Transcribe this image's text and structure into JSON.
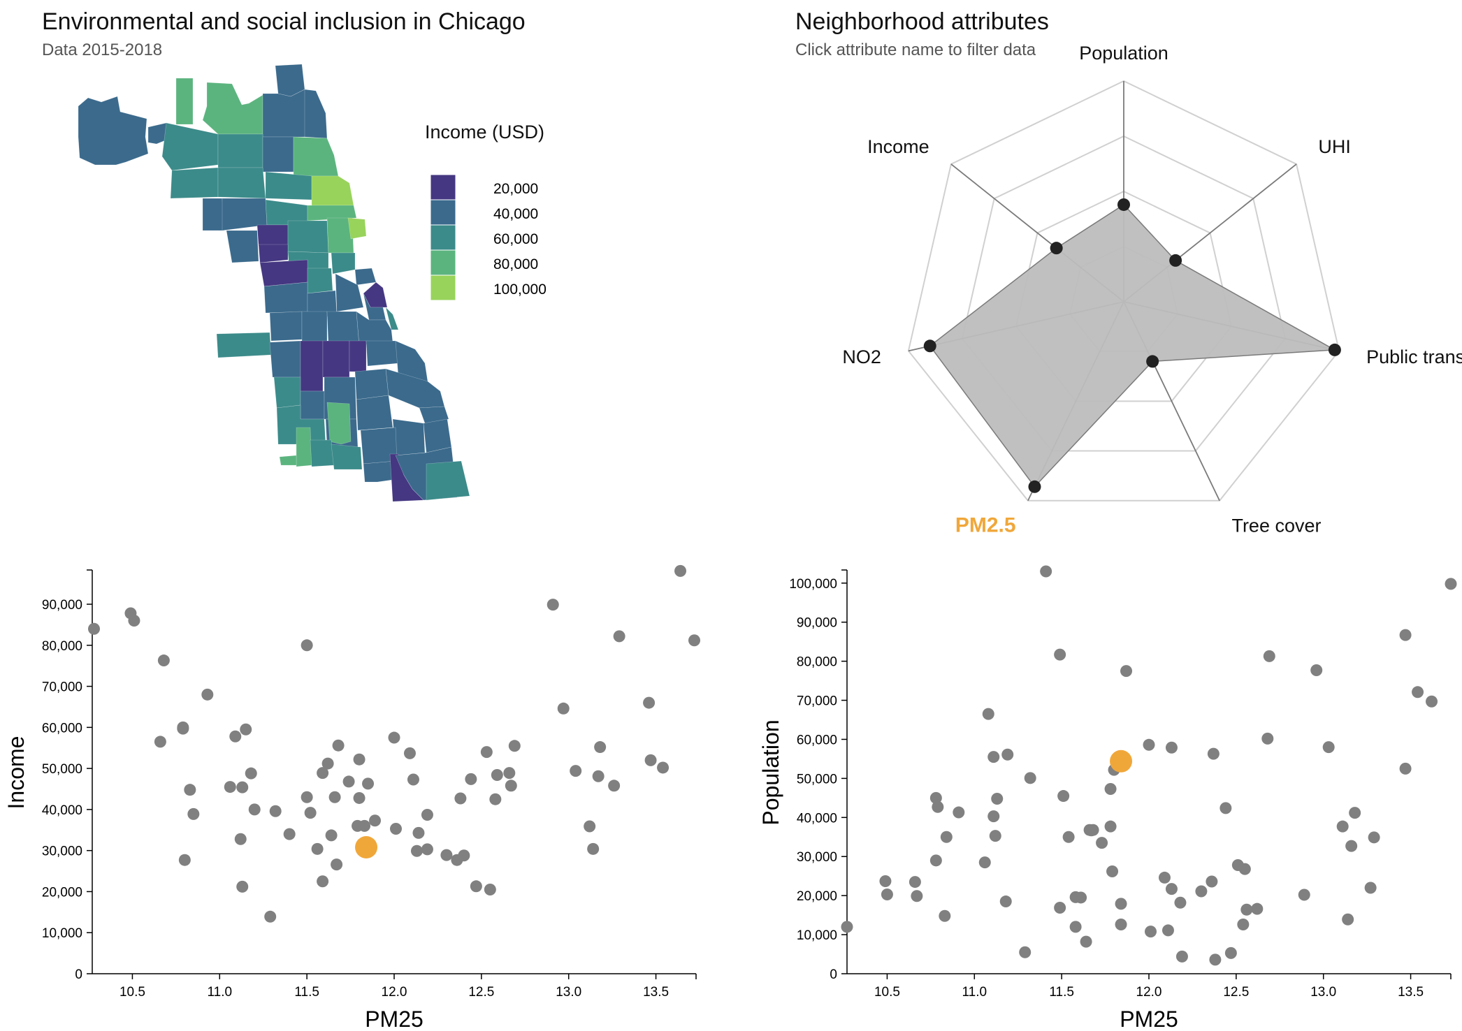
{
  "map_panel": {
    "title": "Environmental and social inclusion in Chicago",
    "subtitle": "Data 2015-2018",
    "legend_title": "Income (USD)",
    "legend": [
      {
        "label": "20,000",
        "color": "#453781"
      },
      {
        "label": "40,000",
        "color": "#3b6a8c"
      },
      {
        "label": "60,000",
        "color": "#3b8b8a"
      },
      {
        "label": "80,000",
        "color": "#5bb47e"
      },
      {
        "label": "100,000",
        "color": "#98d35b"
      }
    ]
  },
  "radar_panel": {
    "title": "Neighborhood attributes",
    "subtitle": "Click attribute name to filter data",
    "selected_axis": "PM2.5",
    "highlight_color": "#f0a73a"
  },
  "chart_data": [
    {
      "type": "radar",
      "axes": [
        "Population",
        "UHI",
        "Public transit",
        "Tree cover",
        "PM2.5",
        "NO2",
        "Income"
      ],
      "values": [
        0.44,
        0.3,
        0.98,
        0.3,
        0.93,
        0.9,
        0.39
      ],
      "rings": 4,
      "fill_color": "#bdbdbd"
    },
    {
      "type": "scatter",
      "xlabel": "PM25",
      "ylabel": "Income",
      "xlim": [
        10.27,
        13.73
      ],
      "ylim": [
        0,
        98000
      ],
      "xticks": [
        "10.5",
        "11.0",
        "11.5",
        "12.0",
        "12.5",
        "13.0",
        "13.5"
      ],
      "yticks": [
        "0",
        "10,000",
        "20,000",
        "30,000",
        "40,000",
        "50,000",
        "60,000",
        "70,000",
        "80,000",
        "90,000"
      ],
      "point_color": "#808080",
      "highlight_color": "#f0a73a",
      "highlight": {
        "x": 11.84,
        "y": 30800
      },
      "points": [
        [
          10.28,
          84000
        ],
        [
          10.49,
          87800
        ],
        [
          10.51,
          86000
        ],
        [
          10.66,
          56500
        ],
        [
          10.68,
          76300
        ],
        [
          10.79,
          59700
        ],
        [
          10.79,
          60000
        ],
        [
          10.8,
          27700
        ],
        [
          10.83,
          44800
        ],
        [
          10.85,
          38900
        ],
        [
          10.93,
          68000
        ],
        [
          11.06,
          45500
        ],
        [
          11.09,
          57800
        ],
        [
          11.12,
          32800
        ],
        [
          11.13,
          21200
        ],
        [
          11.13,
          45400
        ],
        [
          11.15,
          59500
        ],
        [
          11.18,
          48800
        ],
        [
          11.2,
          40000
        ],
        [
          11.29,
          13900
        ],
        [
          11.32,
          39600
        ],
        [
          11.4,
          34000
        ],
        [
          11.5,
          80000
        ],
        [
          11.5,
          43000
        ],
        [
          11.52,
          39200
        ],
        [
          11.56,
          30400
        ],
        [
          11.59,
          22500
        ],
        [
          11.59,
          48900
        ],
        [
          11.62,
          51200
        ],
        [
          11.64,
          33700
        ],
        [
          11.66,
          43000
        ],
        [
          11.67,
          26600
        ],
        [
          11.68,
          55600
        ],
        [
          11.74,
          46800
        ],
        [
          11.79,
          36000
        ],
        [
          11.8,
          52200
        ],
        [
          11.8,
          42800
        ],
        [
          11.83,
          36000
        ],
        [
          11.85,
          46300
        ],
        [
          11.89,
          37300
        ],
        [
          12.0,
          57500
        ],
        [
          12.01,
          35300
        ],
        [
          12.09,
          53700
        ],
        [
          12.11,
          47300
        ],
        [
          12.13,
          29900
        ],
        [
          12.14,
          34300
        ],
        [
          12.19,
          38700
        ],
        [
          12.19,
          30300
        ],
        [
          12.3,
          28900
        ],
        [
          12.36,
          27700
        ],
        [
          12.38,
          42700
        ],
        [
          12.4,
          28800
        ],
        [
          12.44,
          47400
        ],
        [
          12.47,
          21300
        ],
        [
          12.53,
          54000
        ],
        [
          12.55,
          20500
        ],
        [
          12.58,
          42500
        ],
        [
          12.59,
          48400
        ],
        [
          12.66,
          48900
        ],
        [
          12.67,
          45800
        ],
        [
          12.69,
          55500
        ],
        [
          12.91,
          89900
        ],
        [
          12.97,
          64600
        ],
        [
          13.04,
          49400
        ],
        [
          13.12,
          35900
        ],
        [
          13.14,
          30400
        ],
        [
          13.17,
          48100
        ],
        [
          13.18,
          55200
        ],
        [
          13.26,
          45800
        ],
        [
          13.29,
          82200
        ],
        [
          13.46,
          66000
        ],
        [
          13.47,
          52000
        ],
        [
          13.54,
          50200
        ],
        [
          13.64,
          98100
        ],
        [
          13.72,
          81200
        ]
      ]
    },
    {
      "type": "scatter",
      "xlabel": "PM25",
      "ylabel": "Population",
      "xlim": [
        10.27,
        13.73
      ],
      "ylim": [
        0,
        103000
      ],
      "xticks": [
        "10.5",
        "11.0",
        "11.5",
        "12.0",
        "12.5",
        "13.0",
        "13.5"
      ],
      "yticks": [
        "0",
        "10,000",
        "20,000",
        "30,000",
        "40,000",
        "50,000",
        "60,000",
        "70,000",
        "80,000",
        "90,000",
        "100,000"
      ],
      "point_color": "#808080",
      "highlight_color": "#f0a73a",
      "highlight": {
        "x": 11.84,
        "y": 54400
      },
      "points": [
        [
          10.27,
          12000
        ],
        [
          10.49,
          23700
        ],
        [
          10.5,
          20300
        ],
        [
          10.66,
          23500
        ],
        [
          10.67,
          19900
        ],
        [
          10.78,
          45000
        ],
        [
          10.78,
          29000
        ],
        [
          10.79,
          42700
        ],
        [
          10.83,
          14800
        ],
        [
          10.84,
          35000
        ],
        [
          10.91,
          41300
        ],
        [
          11.06,
          28500
        ],
        [
          11.08,
          66500
        ],
        [
          11.11,
          55500
        ],
        [
          11.11,
          40300
        ],
        [
          11.12,
          35300
        ],
        [
          11.13,
          44800
        ],
        [
          11.18,
          18500
        ],
        [
          11.19,
          56100
        ],
        [
          11.29,
          5500
        ],
        [
          11.32,
          50100
        ],
        [
          11.41,
          103000
        ],
        [
          11.49,
          81700
        ],
        [
          11.49,
          16900
        ],
        [
          11.51,
          45500
        ],
        [
          11.54,
          35000
        ],
        [
          11.58,
          12000
        ],
        [
          11.58,
          19600
        ],
        [
          11.61,
          19500
        ],
        [
          11.64,
          8200
        ],
        [
          11.66,
          36800
        ],
        [
          11.67,
          36700
        ],
        [
          11.68,
          36800
        ],
        [
          11.73,
          33500
        ],
        [
          11.78,
          47300
        ],
        [
          11.78,
          37700
        ],
        [
          11.79,
          26200
        ],
        [
          11.8,
          52200
        ],
        [
          11.84,
          12600
        ],
        [
          11.84,
          17900
        ],
        [
          11.87,
          77500
        ],
        [
          12.0,
          58600
        ],
        [
          12.01,
          10800
        ],
        [
          12.09,
          24600
        ],
        [
          12.11,
          11100
        ],
        [
          12.13,
          57900
        ],
        [
          12.13,
          21700
        ],
        [
          12.18,
          18200
        ],
        [
          12.19,
          4400
        ],
        [
          12.3,
          21100
        ],
        [
          12.36,
          23600
        ],
        [
          12.37,
          56300
        ],
        [
          12.38,
          3600
        ],
        [
          12.44,
          42400
        ],
        [
          12.47,
          5300
        ],
        [
          12.51,
          27800
        ],
        [
          12.55,
          26800
        ],
        [
          12.54,
          12600
        ],
        [
          12.56,
          16400
        ],
        [
          12.62,
          16600
        ],
        [
          12.68,
          60200
        ],
        [
          12.69,
          81300
        ],
        [
          12.89,
          20200
        ],
        [
          12.96,
          77700
        ],
        [
          13.03,
          58000
        ],
        [
          13.11,
          37700
        ],
        [
          13.14,
          13900
        ],
        [
          13.16,
          32700
        ],
        [
          13.18,
          41200
        ],
        [
          13.27,
          22000
        ],
        [
          13.29,
          34900
        ],
        [
          13.47,
          86700
        ],
        [
          13.47,
          52500
        ],
        [
          13.54,
          72100
        ],
        [
          13.62,
          69700
        ],
        [
          13.73,
          99800
        ]
      ]
    }
  ]
}
